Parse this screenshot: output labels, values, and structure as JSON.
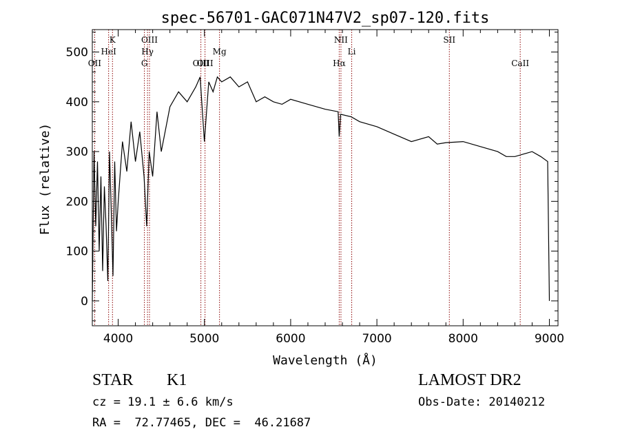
{
  "chart_data": {
    "type": "line",
    "title": "spec-56701-GAC071N47V2_sp07-120.fits",
    "xlabel": "Wavelength (Å)",
    "ylabel": "Flux (relative)",
    "xlim": [
      3700,
      9100
    ],
    "ylim": [
      -50,
      545
    ],
    "x_ticks": [
      4000,
      5000,
      6000,
      7000,
      8000,
      9000
    ],
    "y_ticks": [
      0,
      100,
      200,
      300,
      400,
      500
    ],
    "grid": false,
    "line_color": "#000000",
    "marker_color": "#8b0000",
    "line_markers": [
      {
        "label": "OII",
        "wavelength": 3727,
        "tier": 3
      },
      {
        "label": "K",
        "wavelength": 3934,
        "tier": 1
      },
      {
        "label": "HeI",
        "wavelength": 3889,
        "tier": 2
      },
      {
        "label": "OIII",
        "wavelength": 4363,
        "tier": 1
      },
      {
        "label": "Hγ",
        "wavelength": 4340,
        "tier": 2
      },
      {
        "label": "G",
        "wavelength": 4304,
        "tier": 3
      },
      {
        "label": "OIII",
        "wavelength": 4959,
        "tier": 3
      },
      {
        "label": "OIII",
        "wavelength": 5007,
        "tier": 3
      },
      {
        "label": "Mg",
        "wavelength": 5175,
        "tier": 2
      },
      {
        "label": "NII",
        "wavelength": 6583,
        "tier": 1
      },
      {
        "label": "Hα",
        "wavelength": 6563,
        "tier": 3
      },
      {
        "label": "Li",
        "wavelength": 6708,
        "tier": 2
      },
      {
        "label": "SII",
        "wavelength": 7840,
        "tier": 1
      },
      {
        "label": "CaII",
        "wavelength": 8662,
        "tier": 3
      }
    ],
    "series": [
      {
        "x": [
          3700,
          3720,
          3740,
          3760,
          3780,
          3800,
          3820,
          3840,
          3860,
          3880,
          3900,
          3920,
          3940,
          3960,
          3980,
          4000,
          4050,
          4100,
          4150,
          4200,
          4250,
          4300,
          4330,
          4360,
          4400,
          4450,
          4500,
          4600,
          4700,
          4800,
          4900,
          4950,
          5000,
          5050,
          5100,
          5150,
          5200,
          5300,
          5400,
          5500,
          5600,
          5700,
          5800,
          5900,
          6000,
          6200,
          6400,
          6550,
          6563,
          6580,
          6700,
          6800,
          7000,
          7200,
          7400,
          7600,
          7700,
          7800,
          8000,
          8200,
          8400,
          8500,
          8600,
          8700,
          8800,
          8900,
          8980,
          9000
        ],
        "y": [
          0,
          300,
          150,
          280,
          100,
          250,
          60,
          230,
          150,
          40,
          300,
          180,
          50,
          280,
          140,
          200,
          320,
          260,
          360,
          280,
          340,
          250,
          150,
          300,
          250,
          380,
          300,
          390,
          420,
          400,
          430,
          450,
          320,
          440,
          420,
          450,
          440,
          450,
          430,
          440,
          400,
          410,
          400,
          395,
          405,
          395,
          385,
          380,
          330,
          375,
          370,
          360,
          350,
          335,
          320,
          330,
          315,
          318,
          320,
          310,
          300,
          290,
          290,
          295,
          300,
          290,
          280,
          0
        ]
      }
    ]
  },
  "footer": {
    "object_class": "STAR",
    "subclass": "K1",
    "survey": "LAMOST DR2",
    "redshift": "cz = 19.1 ± 6.6 km/s",
    "obs_date": "Obs-Date: 20140212",
    "coords": "RA =  72.77465, DEC =  46.21687"
  }
}
